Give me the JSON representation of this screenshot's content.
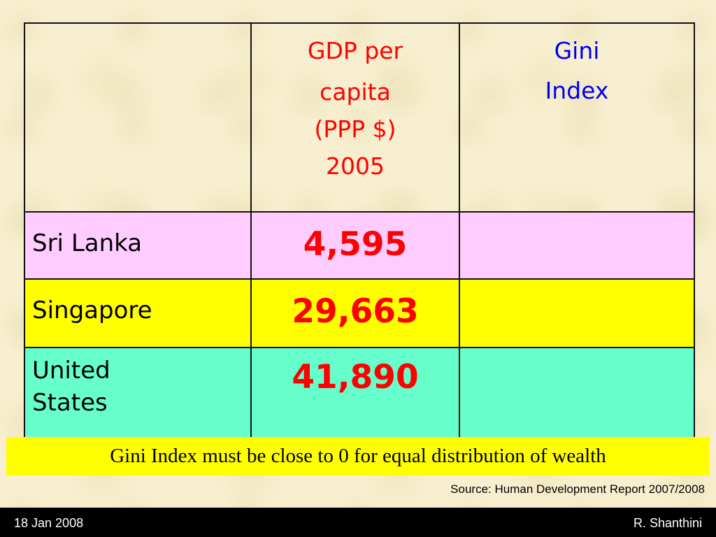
{
  "table": {
    "headers": {
      "corner": "",
      "gdp": [
        "GDP per",
        "capita",
        "(PPP $)",
        "2005"
      ],
      "gini": [
        "Gini",
        "Index"
      ]
    },
    "rows": [
      {
        "country": [
          "Sri Lanka"
        ],
        "gdp": "4,595",
        "gini": "",
        "color": "#ffccff"
      },
      {
        "country": [
          "Singapore"
        ],
        "gdp": "29,663",
        "gini": "",
        "color": "#ffff00"
      },
      {
        "country": [
          "United",
          "States"
        ],
        "gdp": "41,890",
        "gini": "",
        "color": "#66ffcc"
      }
    ],
    "header_colors": {
      "gdp": "#ff0000",
      "gini": "#0000ee"
    }
  },
  "note": {
    "text": "Gini Index must be close to 0 for equal distribution of wealth",
    "color": "#ffff00"
  },
  "source": "Source: Human Development Report 2007/2008",
  "footer": {
    "date": "18 Jan 2008",
    "author": "R. Shanthini"
  }
}
